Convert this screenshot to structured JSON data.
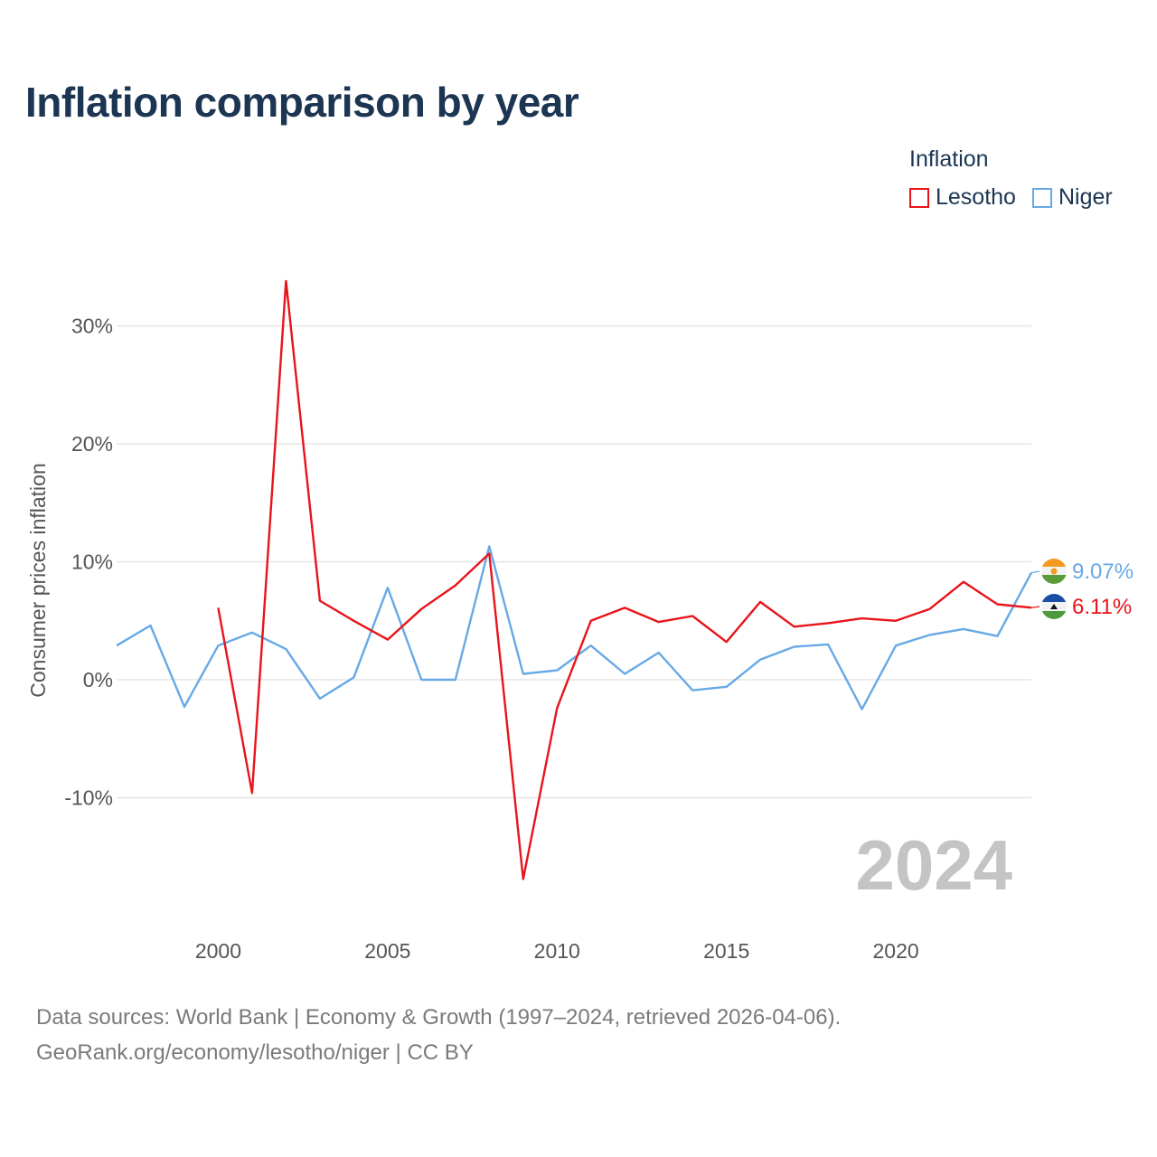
{
  "title": "Inflation comparison by year",
  "legend": {
    "title": "Inflation",
    "items": [
      {
        "name": "Lesotho",
        "color": "#e8141b"
      },
      {
        "name": "Niger",
        "color": "#67a9e6"
      }
    ]
  },
  "footer": {
    "line1": "Data sources: World Bank | Economy & Growth (1997–2024, retrieved 2026-04-06).",
    "line2": "GeoRank.org/economy/lesotho/niger | CC BY"
  },
  "chart_data": {
    "type": "line",
    "title": "Inflation comparison by year",
    "xlabel": "",
    "ylabel": "Consumer prices inflation",
    "xlim": [
      1997,
      2024
    ],
    "ylim": [
      -20,
      34
    ],
    "grid": true,
    "legend_position": "top-right",
    "watermark_year": "2024",
    "x_ticks": [
      {
        "value": 2000,
        "label": "2000"
      },
      {
        "value": 2005,
        "label": "2005"
      },
      {
        "value": 2010,
        "label": "2010"
      },
      {
        "value": 2015,
        "label": "2015"
      },
      {
        "value": 2020,
        "label": "2020"
      }
    ],
    "y_ticks": [
      {
        "value": 30,
        "label": "30%"
      },
      {
        "value": 20,
        "label": "20%"
      },
      {
        "value": 10,
        "label": "10%"
      },
      {
        "value": 0,
        "label": "0%"
      },
      {
        "value": -10,
        "label": "-10%"
      }
    ],
    "series": [
      {
        "name": "Lesotho",
        "color": "#e8141b",
        "x": [
          2000,
          2001,
          2002,
          2003,
          2004,
          2005,
          2006,
          2007,
          2008,
          2009,
          2010,
          2011,
          2012,
          2013,
          2014,
          2015,
          2016,
          2017,
          2018,
          2019,
          2020,
          2021,
          2022,
          2023,
          2024
        ],
        "values": [
          6.1,
          -9.6,
          33.8,
          6.7,
          5.0,
          3.4,
          6.0,
          8.0,
          10.7,
          -16.9,
          -2.4,
          5.0,
          6.1,
          4.9,
          5.4,
          3.2,
          6.6,
          4.5,
          4.8,
          5.2,
          5.0,
          6.0,
          8.3,
          6.4,
          6.11
        ],
        "end_label": "6.11%"
      },
      {
        "name": "Niger",
        "color": "#67a9e6",
        "x": [
          1997,
          1998,
          1999,
          2000,
          2001,
          2002,
          2003,
          2004,
          2005,
          2006,
          2007,
          2008,
          2009,
          2010,
          2011,
          2012,
          2013,
          2014,
          2015,
          2016,
          2017,
          2018,
          2019,
          2020,
          2021,
          2022,
          2023,
          2024
        ],
        "values": [
          2.9,
          4.6,
          -2.3,
          2.9,
          4.0,
          2.6,
          -1.6,
          0.2,
          7.8,
          0.0,
          0.0,
          11.3,
          0.5,
          0.8,
          2.9,
          0.5,
          2.3,
          -0.9,
          -0.6,
          1.7,
          2.8,
          3.0,
          -2.5,
          2.9,
          3.8,
          4.3,
          3.7,
          9.07
        ],
        "end_label": "9.07%"
      }
    ]
  }
}
